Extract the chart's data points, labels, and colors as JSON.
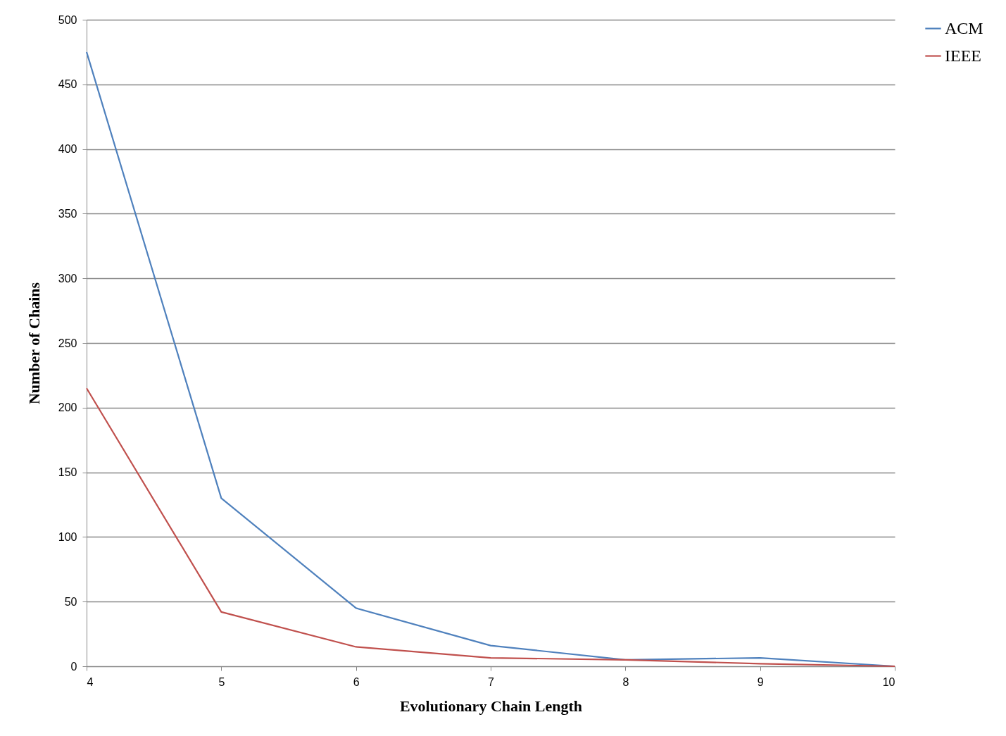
{
  "chart_data": {
    "type": "line",
    "xlabel": "Evolutionary Chain Length",
    "ylabel": "Number of Chains",
    "x": [
      4,
      5,
      6,
      7,
      8,
      9,
      10
    ],
    "series": [
      {
        "name": "ACM",
        "color": "#4f81bd",
        "values": [
          475,
          130,
          45,
          16,
          5,
          6.5,
          0
        ]
      },
      {
        "name": "IEEE",
        "color": "#c0504d",
        "values": [
          215,
          42,
          15,
          6.5,
          5,
          2,
          0
        ]
      }
    ],
    "xlim": [
      4,
      10
    ],
    "xticks": [
      4,
      5,
      6,
      7,
      8,
      9,
      10
    ],
    "ylim": [
      0,
      500
    ],
    "yticks": [
      0,
      50,
      100,
      150,
      200,
      250,
      300,
      350,
      400,
      450,
      500
    ],
    "grid": "y",
    "legend": "right",
    "marker": "none",
    "line_style": "solid"
  }
}
